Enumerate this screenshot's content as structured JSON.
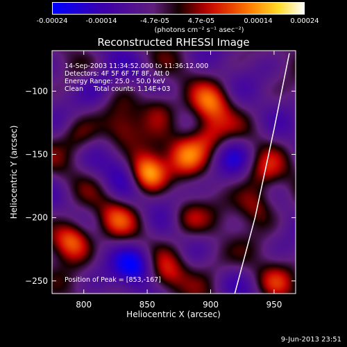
{
  "colorbar": {
    "ticks": [
      "-0.00024",
      "-0.00014",
      "-4.7e-05",
      "4.7e-05",
      "0.00014",
      "0.00024"
    ],
    "units": "(photons cm⁻² s⁻¹ asec⁻²)"
  },
  "annotations": {
    "time_range": "14-Sep-2003 11:34:52.000 to 11:36:12.000",
    "detectors": "Detectors: 4F 5F 6F 7F 8F, Att 0",
    "energy": "Energy Range: 25.0 - 50.0 keV",
    "method": "Clean     Total counts: 1.14E+03",
    "peak": "Position of Peak = [853,-167]"
  },
  "footer": "9-Jun-2013 23:51",
  "chart_data": {
    "type": "heatmap",
    "title": "Reconstructed RHESSI Image",
    "xlabel": "Heliocentric X (arcsec)",
    "ylabel": "Heliocentric Y (arcsec)",
    "xlim": [
      775,
      967
    ],
    "ylim": [
      -260,
      -68
    ],
    "x_ticks": [
      800,
      850,
      900,
      950
    ],
    "y_ticks": [
      -100,
      -150,
      -200,
      -250
    ],
    "colorbar_range": [
      -0.00024,
      0.00024
    ],
    "peak_position": [
      853,
      -167
    ],
    "hotspots": [
      {
        "x": 850,
        "y": -165,
        "value": 0.00024
      },
      {
        "x": 790,
        "y": -218,
        "value": 0.0002
      },
      {
        "x": 880,
        "y": -150,
        "value": 0.00016
      },
      {
        "x": 897,
        "y": -135,
        "value": 0.00015
      },
      {
        "x": 900,
        "y": -110,
        "value": 0.00013
      },
      {
        "x": 860,
        "y": -112,
        "value": 0.00012
      },
      {
        "x": 830,
        "y": -130,
        "value": 0.0001
      },
      {
        "x": 935,
        "y": -190,
        "value": 0.00012
      },
      {
        "x": 795,
        "y": -135,
        "value": 9e-05
      },
      {
        "x": 880,
        "y": -200,
        "value": 0.0001
      },
      {
        "x": 825,
        "y": -200,
        "value": 0.0001
      },
      {
        "x": 865,
        "y": -245,
        "value": 0.0001
      },
      {
        "x": 950,
        "y": -250,
        "value": 8e-05
      },
      {
        "x": 900,
        "y": -235,
        "value": 7e-05
      },
      {
        "x": 940,
        "y": -165,
        "value": 0.0001
      },
      {
        "x": 810,
        "y": -95,
        "value": -8e-05
      },
      {
        "x": 840,
        "y": -238,
        "value": -0.00016
      },
      {
        "x": 830,
        "y": -165,
        "value": -8e-05
      },
      {
        "x": 920,
        "y": -150,
        "value": -7e-05
      },
      {
        "x": 870,
        "y": -180,
        "value": -6e-05
      }
    ],
    "limb_curve": {
      "x": [
        919,
        935,
        950,
        962
      ],
      "y": [
        -260,
        -200,
        -130,
        -70
      ]
    }
  }
}
